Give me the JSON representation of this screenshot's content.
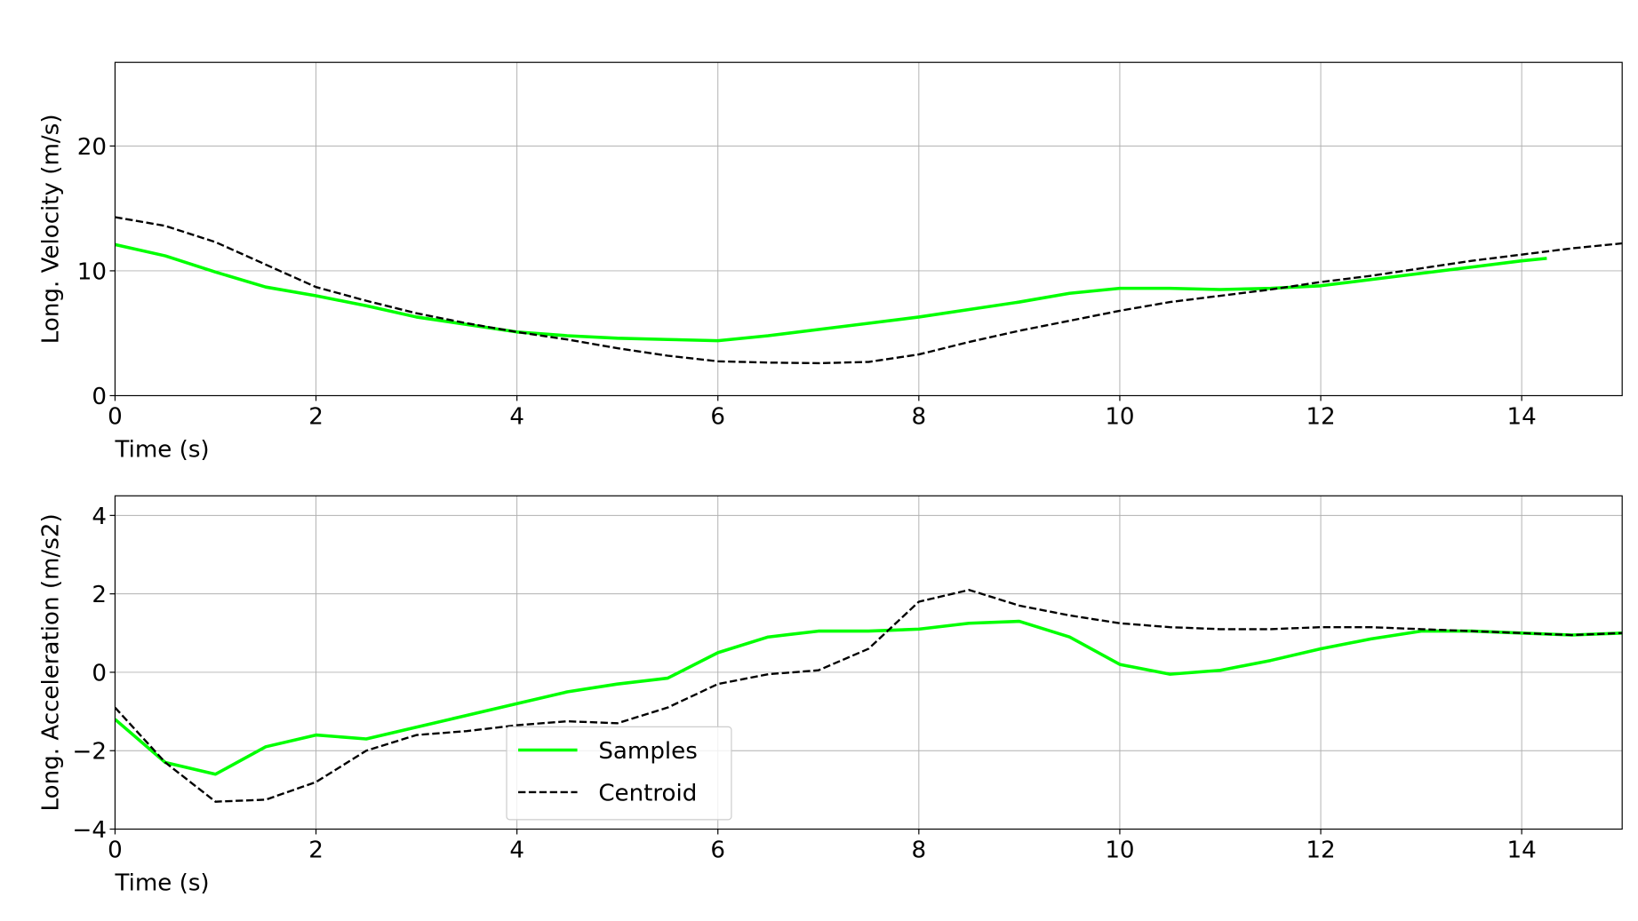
{
  "chart_data": [
    {
      "type": "line",
      "xlabel": "Time (s)",
      "ylabel": "Long. Velocity (m/s)",
      "xlim": [
        0,
        15
      ],
      "xticks": [
        0,
        2,
        4,
        6,
        8,
        10,
        12,
        14
      ],
      "ylim": [
        0,
        26.7
      ],
      "yticks": [
        0,
        10,
        20
      ],
      "grid": true,
      "x": [
        0,
        0.5,
        1,
        1.5,
        2,
        2.5,
        3,
        3.5,
        4,
        4.5,
        5,
        5.5,
        6,
        6.5,
        7,
        7.5,
        8,
        8.5,
        9,
        9.5,
        10,
        10.5,
        11,
        11.5,
        12,
        12.5,
        13,
        13.5,
        14,
        14.5,
        15
      ],
      "series": [
        {
          "color": "#00ff00",
          "linestyle": "solid",
          "x": [
            0,
            0.5,
            1,
            1.5,
            2,
            2.5,
            3,
            3.5,
            4,
            4.5,
            5,
            5.5,
            6,
            6.5,
            7,
            7.5,
            8,
            8.5,
            9,
            9.5,
            10,
            10.5,
            11,
            11.5,
            12,
            12.5,
            13,
            13.5,
            14,
            14.25
          ],
          "values": [
            12.1,
            11.2,
            9.9,
            8.7,
            8.0,
            7.2,
            6.3,
            5.7,
            5.1,
            4.8,
            4.6,
            4.5,
            4.4,
            4.8,
            5.3,
            5.8,
            6.3,
            6.9,
            7.5,
            8.2,
            8.6,
            8.6,
            8.5,
            8.6,
            8.8,
            9.3,
            9.8,
            10.3,
            10.8,
            11.0
          ]
        },
        {
          "color": "#000000",
          "linestyle": "dashed",
          "values": [
            14.3,
            13.6,
            12.3,
            10.5,
            8.7,
            7.6,
            6.6,
            5.8,
            5.1,
            4.5,
            3.8,
            3.2,
            2.75,
            2.65,
            2.6,
            2.7,
            3.3,
            4.3,
            5.2,
            6.0,
            6.8,
            7.5,
            8.0,
            8.5,
            9.1,
            9.6,
            10.2,
            10.8,
            11.3,
            11.8,
            12.2
          ]
        }
      ]
    },
    {
      "type": "line",
      "xlabel": "Time (s)",
      "ylabel": "Long. Acceleration (m/s2)",
      "xlim": [
        0,
        15
      ],
      "xticks": [
        0,
        2,
        4,
        6,
        8,
        10,
        12,
        14
      ],
      "ylim": [
        -4,
        4.5
      ],
      "yticks": [
        {
          "value": -4,
          "label": "−4"
        },
        {
          "value": -2,
          "label": "−2"
        },
        0,
        2,
        4
      ],
      "grid": true,
      "legend": "lower center",
      "x": [
        0,
        0.5,
        1,
        1.5,
        2,
        2.5,
        3,
        3.5,
        4,
        4.5,
        5,
        5.5,
        6,
        6.5,
        7,
        7.5,
        8,
        8.5,
        9,
        9.5,
        10,
        10.5,
        11,
        11.5,
        12,
        12.5,
        13,
        13.5,
        14,
        14.5,
        15
      ],
      "series": [
        {
          "name": "Samples",
          "color": "#00ff00",
          "linestyle": "solid",
          "values": [
            -1.2,
            -2.3,
            -2.6,
            -1.9,
            -1.6,
            -1.7,
            -1.4,
            -1.1,
            -0.8,
            -0.5,
            -0.3,
            -0.15,
            0.5,
            0.9,
            1.05,
            1.05,
            1.1,
            1.25,
            1.3,
            0.9,
            0.2,
            -0.05,
            0.05,
            0.3,
            0.6,
            0.85,
            1.05,
            1.05,
            1.0,
            0.95,
            1.0
          ]
        },
        {
          "name": "Centroid",
          "color": "#000000",
          "linestyle": "dashed",
          "values": [
            -0.9,
            -2.3,
            -3.3,
            -3.25,
            -2.8,
            -2.0,
            -1.6,
            -1.5,
            -1.35,
            -1.25,
            -1.3,
            -0.9,
            -0.3,
            -0.05,
            0.05,
            0.6,
            1.8,
            2.1,
            1.7,
            1.45,
            1.25,
            1.15,
            1.1,
            1.1,
            1.15,
            1.15,
            1.1,
            1.05,
            1.0,
            0.95,
            1.0
          ]
        }
      ]
    }
  ]
}
